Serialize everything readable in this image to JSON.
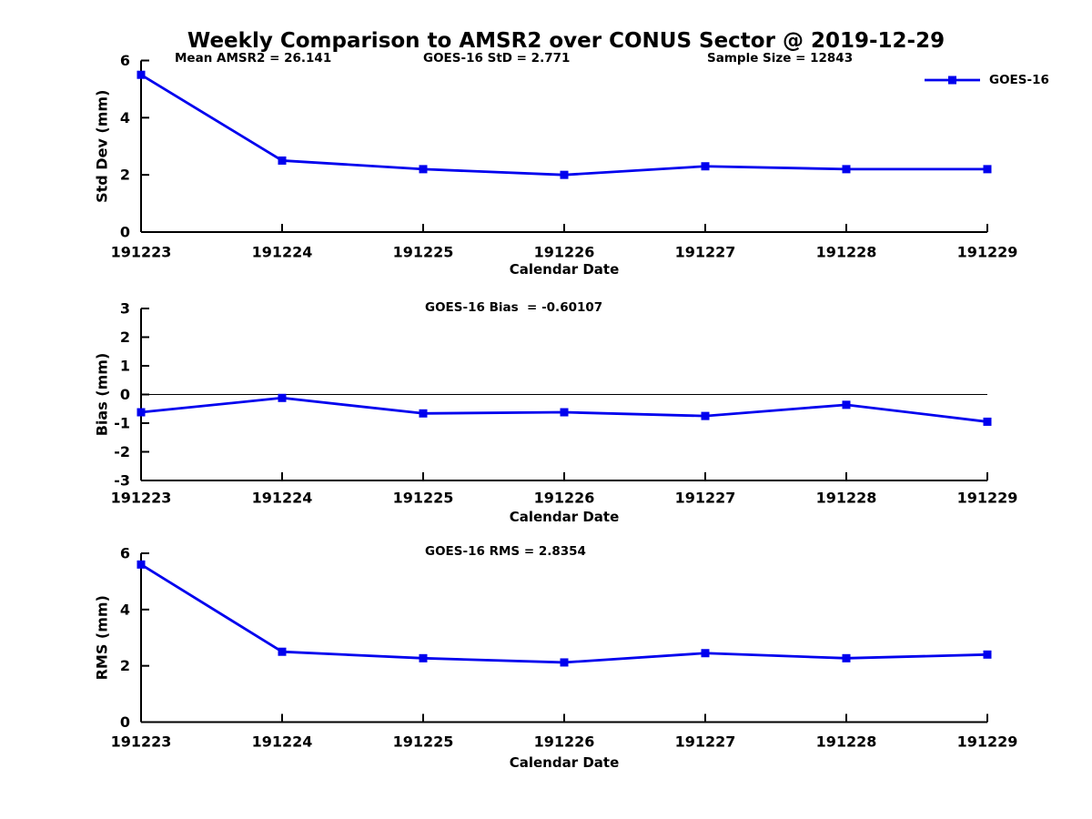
{
  "figure": {
    "title": "Weekly Comparison to AMSR2 over CONUS Sector @ 2019-12-29",
    "legend": {
      "label": "GOES-16"
    },
    "colors": {
      "series": "#0000EE",
      "axis": "#000000",
      "text": "#000000",
      "background": "#FFFFFF"
    }
  },
  "chart_data": [
    {
      "id": "std-dev",
      "type": "line",
      "annotations": [
        "Mean AMSR2 = 26.141",
        "GOES-16 StD = 2.771",
        "Sample Size = 12843"
      ],
      "categories": [
        "191223",
        "191224",
        "191225",
        "191226",
        "191227",
        "191228",
        "191229"
      ],
      "series": [
        {
          "name": "GOES-16",
          "values": [
            5.5,
            2.5,
            2.2,
            2.0,
            2.3,
            2.2,
            2.2
          ]
        }
      ],
      "xlabel": "Calendar Date",
      "ylabel": "Std Dev (mm)",
      "ylim": [
        0,
        6
      ],
      "yticks": [
        0,
        2,
        4,
        6
      ],
      "grid": false,
      "legend_position": "top-right",
      "marker": "square"
    },
    {
      "id": "bias",
      "type": "line",
      "annotations": [
        "GOES-16 Bias  = -0.60107"
      ],
      "categories": [
        "191223",
        "191224",
        "191225",
        "191226",
        "191227",
        "191228",
        "191229"
      ],
      "series": [
        {
          "name": "GOES-16",
          "values": [
            -0.62,
            -0.12,
            -0.66,
            -0.62,
            -0.75,
            -0.36,
            -0.95
          ]
        }
      ],
      "xlabel": "Calendar Date",
      "ylabel": "Bias (mm)",
      "ylim": [
        -3,
        3
      ],
      "yticks": [
        -3,
        -2,
        -1,
        0,
        1,
        2,
        3
      ],
      "zero_line": true,
      "grid": false,
      "marker": "square"
    },
    {
      "id": "rms",
      "type": "line",
      "annotations": [
        "GOES-16 RMS = 2.8354"
      ],
      "categories": [
        "191223",
        "191224",
        "191225",
        "191226",
        "191227",
        "191228",
        "191229"
      ],
      "series": [
        {
          "name": "GOES-16",
          "values": [
            5.6,
            2.5,
            2.27,
            2.12,
            2.45,
            2.27,
            2.4
          ]
        }
      ],
      "xlabel": "Calendar Date",
      "ylabel": "RMS (mm)",
      "ylim": [
        0,
        6
      ],
      "yticks": [
        0,
        2,
        4,
        6
      ],
      "grid": false,
      "marker": "square"
    }
  ]
}
